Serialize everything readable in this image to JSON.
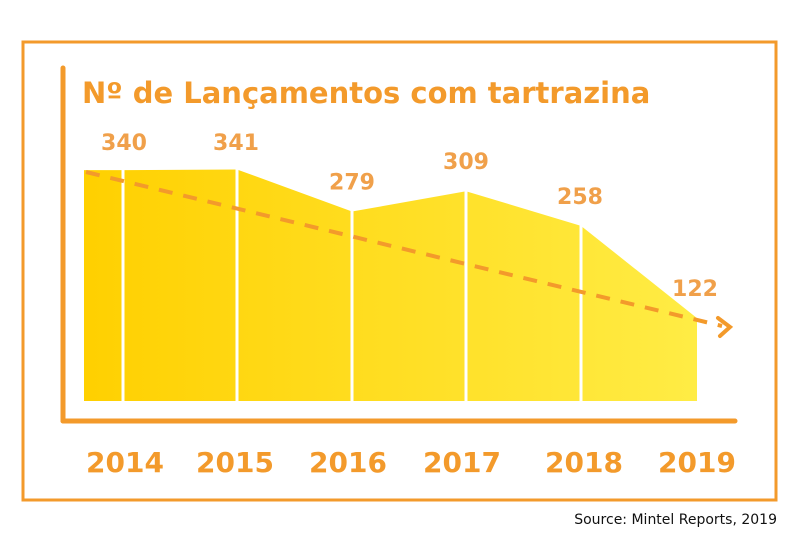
{
  "chart_data": {
    "type": "area",
    "title": "Nº de Lançamentos com tartrazina",
    "categories": [
      "2014",
      "2015",
      "2016",
      "2017",
      "2018",
      "2019"
    ],
    "values": [
      340,
      341,
      279,
      309,
      258,
      122
    ],
    "value_labels": [
      "340",
      "341",
      "279",
      "309",
      "258",
      "122"
    ],
    "trend": "dashed decreasing arrow",
    "ylim": [
      0,
      340
    ],
    "grid": false,
    "source": "Source: Mintel Reports, 2019",
    "colors": {
      "accent": "#f39a2b",
      "fill_start": "#ffd000",
      "fill_end": "#ffec45",
      "trend": "#f39a2b"
    }
  }
}
